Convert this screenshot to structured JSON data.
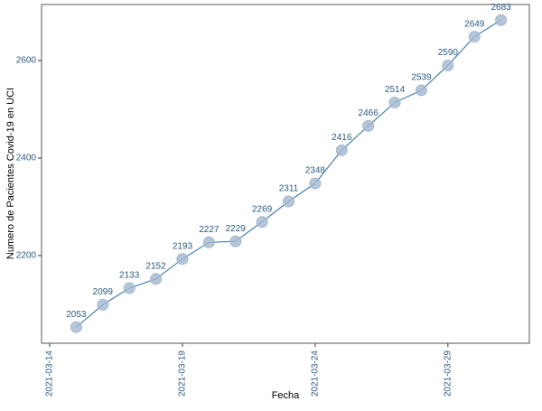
{
  "chart_data": {
    "type": "line",
    "x_label": "Fecha",
    "y_label": "Numero de Pacientes Covid-19 en UCI",
    "x": [
      "2021-03-15",
      "2021-03-16",
      "2021-03-17",
      "2021-03-18",
      "2021-03-19",
      "2021-03-20",
      "2021-03-21",
      "2021-03-22",
      "2021-03-23",
      "2021-03-24",
      "2021-03-25",
      "2021-03-26",
      "2021-03-27",
      "2021-03-28",
      "2021-03-29",
      "2021-03-30",
      "2021-03-31"
    ],
    "values": [
      2053,
      2099,
      2133,
      2152,
      2193,
      2227,
      2229,
      2269,
      2311,
      2348,
      2416,
      2466,
      2514,
      2539,
      2590,
      2649,
      2683
    ],
    "color": "#4682b4",
    "point_color": "#a3b8cf",
    "label_color": "#2b5c8a",
    "xlim": [
      "2021-03-14",
      "2021-04-01"
    ],
    "xticks": [
      "2021-03-14",
      "2021-03-19",
      "2021-03-24",
      "2021-03-29"
    ],
    "ylim": [
      2020,
      2715
    ],
    "yticks": [
      2200,
      2400,
      2600
    ],
    "grid": true
  }
}
